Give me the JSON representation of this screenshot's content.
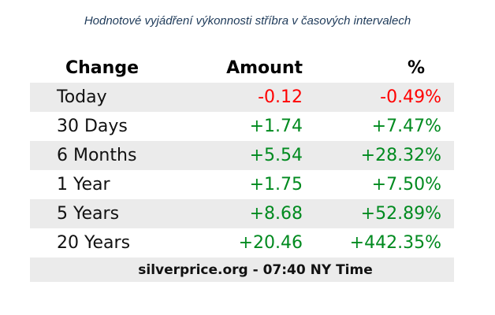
{
  "caption": "Hodnotové vyjádření výkonnosti stříbra v časových intervalech",
  "table": {
    "headers": {
      "change": "Change",
      "amount": "Amount",
      "percent": "%"
    },
    "rows": [
      {
        "change": "Today",
        "amount": "-0.12",
        "percent": "-0.49%",
        "direction": "negative"
      },
      {
        "change": "30 Days",
        "amount": "+1.74",
        "percent": "+7.47%",
        "direction": "positive"
      },
      {
        "change": "6 Months",
        "amount": "+5.54",
        "percent": "+28.32%",
        "direction": "positive"
      },
      {
        "change": "1 Year",
        "amount": "+1.75",
        "percent": "+7.50%",
        "direction": "positive"
      },
      {
        "change": "5 Years",
        "amount": "+8.68",
        "percent": "+52.89%",
        "direction": "positive"
      },
      {
        "change": "20 Years",
        "amount": "+20.46",
        "percent": "+442.35%",
        "direction": "positive"
      }
    ],
    "footer": "silverprice.org - 07:40 NY Time"
  },
  "colors": {
    "positive": "#008a1f",
    "negative": "#ff0000",
    "row_shade": "#ebebeb",
    "caption": "#1f3b5a"
  }
}
